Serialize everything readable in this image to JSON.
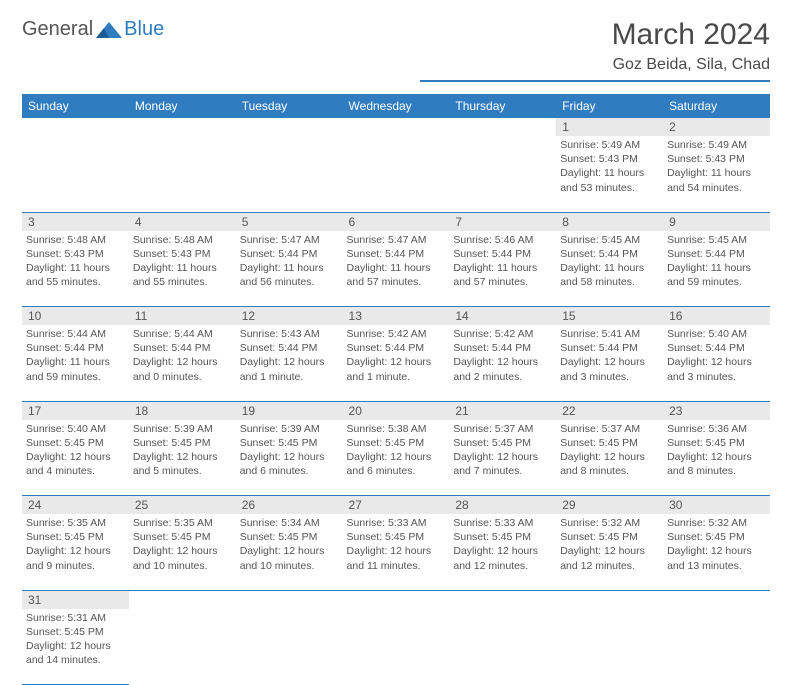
{
  "logo": {
    "text1": "General",
    "text2": "Blue",
    "shape_color": "#2f7cc0"
  },
  "title": "March 2024",
  "location": "Goz Beida, Sila, Chad",
  "colors": {
    "header_bg": "#2f7cc0",
    "daynum_bg": "#e9e9e9",
    "border": "#2f7cc0"
  },
  "weekdays": [
    "Sunday",
    "Monday",
    "Tuesday",
    "Wednesday",
    "Thursday",
    "Friday",
    "Saturday"
  ],
  "weeks": [
    [
      null,
      null,
      null,
      null,
      null,
      {
        "n": "1",
        "sunrise": "5:49 AM",
        "sunset": "5:43 PM",
        "daylight": "11 hours and 53 minutes."
      },
      {
        "n": "2",
        "sunrise": "5:49 AM",
        "sunset": "5:43 PM",
        "daylight": "11 hours and 54 minutes."
      }
    ],
    [
      {
        "n": "3",
        "sunrise": "5:48 AM",
        "sunset": "5:43 PM",
        "daylight": "11 hours and 55 minutes."
      },
      {
        "n": "4",
        "sunrise": "5:48 AM",
        "sunset": "5:43 PM",
        "daylight": "11 hours and 55 minutes."
      },
      {
        "n": "5",
        "sunrise": "5:47 AM",
        "sunset": "5:44 PM",
        "daylight": "11 hours and 56 minutes."
      },
      {
        "n": "6",
        "sunrise": "5:47 AM",
        "sunset": "5:44 PM",
        "daylight": "11 hours and 57 minutes."
      },
      {
        "n": "7",
        "sunrise": "5:46 AM",
        "sunset": "5:44 PM",
        "daylight": "11 hours and 57 minutes."
      },
      {
        "n": "8",
        "sunrise": "5:45 AM",
        "sunset": "5:44 PM",
        "daylight": "11 hours and 58 minutes."
      },
      {
        "n": "9",
        "sunrise": "5:45 AM",
        "sunset": "5:44 PM",
        "daylight": "11 hours and 59 minutes."
      }
    ],
    [
      {
        "n": "10",
        "sunrise": "5:44 AM",
        "sunset": "5:44 PM",
        "daylight": "11 hours and 59 minutes."
      },
      {
        "n": "11",
        "sunrise": "5:44 AM",
        "sunset": "5:44 PM",
        "daylight": "12 hours and 0 minutes."
      },
      {
        "n": "12",
        "sunrise": "5:43 AM",
        "sunset": "5:44 PM",
        "daylight": "12 hours and 1 minute."
      },
      {
        "n": "13",
        "sunrise": "5:42 AM",
        "sunset": "5:44 PM",
        "daylight": "12 hours and 1 minute."
      },
      {
        "n": "14",
        "sunrise": "5:42 AM",
        "sunset": "5:44 PM",
        "daylight": "12 hours and 2 minutes."
      },
      {
        "n": "15",
        "sunrise": "5:41 AM",
        "sunset": "5:44 PM",
        "daylight": "12 hours and 3 minutes."
      },
      {
        "n": "16",
        "sunrise": "5:40 AM",
        "sunset": "5:44 PM",
        "daylight": "12 hours and 3 minutes."
      }
    ],
    [
      {
        "n": "17",
        "sunrise": "5:40 AM",
        "sunset": "5:45 PM",
        "daylight": "12 hours and 4 minutes."
      },
      {
        "n": "18",
        "sunrise": "5:39 AM",
        "sunset": "5:45 PM",
        "daylight": "12 hours and 5 minutes."
      },
      {
        "n": "19",
        "sunrise": "5:39 AM",
        "sunset": "5:45 PM",
        "daylight": "12 hours and 6 minutes."
      },
      {
        "n": "20",
        "sunrise": "5:38 AM",
        "sunset": "5:45 PM",
        "daylight": "12 hours and 6 minutes."
      },
      {
        "n": "21",
        "sunrise": "5:37 AM",
        "sunset": "5:45 PM",
        "daylight": "12 hours and 7 minutes."
      },
      {
        "n": "22",
        "sunrise": "5:37 AM",
        "sunset": "5:45 PM",
        "daylight": "12 hours and 8 minutes."
      },
      {
        "n": "23",
        "sunrise": "5:36 AM",
        "sunset": "5:45 PM",
        "daylight": "12 hours and 8 minutes."
      }
    ],
    [
      {
        "n": "24",
        "sunrise": "5:35 AM",
        "sunset": "5:45 PM",
        "daylight": "12 hours and 9 minutes."
      },
      {
        "n": "25",
        "sunrise": "5:35 AM",
        "sunset": "5:45 PM",
        "daylight": "12 hours and 10 minutes."
      },
      {
        "n": "26",
        "sunrise": "5:34 AM",
        "sunset": "5:45 PM",
        "daylight": "12 hours and 10 minutes."
      },
      {
        "n": "27",
        "sunrise": "5:33 AM",
        "sunset": "5:45 PM",
        "daylight": "12 hours and 11 minutes."
      },
      {
        "n": "28",
        "sunrise": "5:33 AM",
        "sunset": "5:45 PM",
        "daylight": "12 hours and 12 minutes."
      },
      {
        "n": "29",
        "sunrise": "5:32 AM",
        "sunset": "5:45 PM",
        "daylight": "12 hours and 12 minutes."
      },
      {
        "n": "30",
        "sunrise": "5:32 AM",
        "sunset": "5:45 PM",
        "daylight": "12 hours and 13 minutes."
      }
    ],
    [
      {
        "n": "31",
        "sunrise": "5:31 AM",
        "sunset": "5:45 PM",
        "daylight": "12 hours and 14 minutes."
      },
      null,
      null,
      null,
      null,
      null,
      null
    ]
  ],
  "labels": {
    "sunrise": "Sunrise:",
    "sunset": "Sunset:",
    "daylight": "Daylight:"
  }
}
